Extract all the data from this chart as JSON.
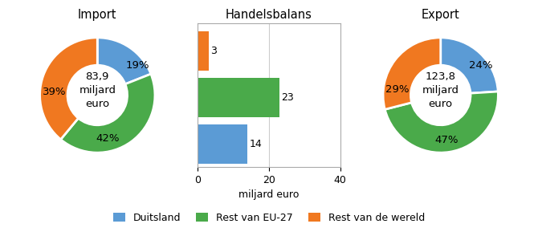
{
  "import_values": [
    19,
    42,
    39
  ],
  "export_values": [
    24,
    47,
    29
  ],
  "import_total": "83,9\nmiljard\neuro",
  "export_total": "123,8\nmiljard\neuro",
  "colors": [
    "#5b9bd5",
    "#4aaa4a",
    "#f07820"
  ],
  "import_pct_labels": [
    "19%",
    "42%",
    "39%"
  ],
  "export_pct_labels": [
    "24%",
    "47%",
    "29%"
  ],
  "bar_values": [
    3,
    23,
    14
  ],
  "bar_colors": [
    "#f07820",
    "#4aaa4a",
    "#5b9bd5"
  ],
  "bar_xlim": [
    0,
    40
  ],
  "bar_xticks": [
    0,
    20,
    40
  ],
  "handelsbalans_title": "Handelsbalans",
  "import_title": "Import",
  "export_title": "Export",
  "xlabel": "miljard euro",
  "legend_labels": [
    "Duitsland",
    "Rest van EU-27",
    "Rest van de wereld"
  ]
}
